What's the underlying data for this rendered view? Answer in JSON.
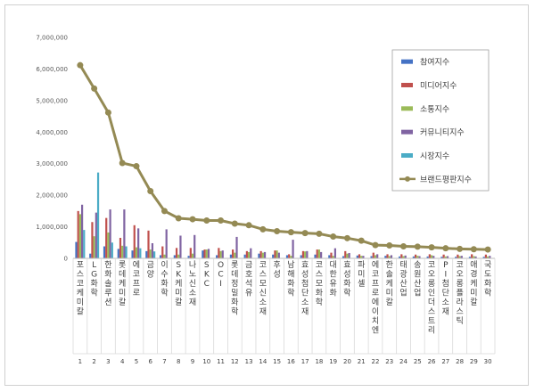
{
  "chart_data": {
    "type": "bar",
    "numbers": [
      "1",
      "2",
      "3",
      "4",
      "5",
      "6",
      "7",
      "8",
      "9",
      "10",
      "11",
      "12",
      "13",
      "14",
      "15",
      "16",
      "17",
      "18",
      "19",
      "20",
      "21",
      "22",
      "23",
      "24",
      "25",
      "26",
      "27",
      "28",
      "29",
      "30"
    ],
    "categories": [
      "포스코케미칼",
      "LG화학",
      "한화솔루션",
      "롯데케미칼",
      "에코프로",
      "금양",
      "이수화학",
      "SK케미칼",
      "나노신소재",
      "SKC",
      "OCI",
      "롯데정밀화학",
      "금호석유",
      "코스모신소재",
      "후성",
      "남해화학",
      "효성첨단소재",
      "코스모화학",
      "대한유화",
      "효성화학",
      "파미셀",
      "에코프로에이치엔",
      "한솔케미칼",
      "태광산업",
      "송원산업",
      "코오롱인더스트리",
      "PI첨단소재",
      "코오롱플라스틱",
      "애경케미칼",
      "국도화학"
    ],
    "ylim": [
      0,
      7000000
    ],
    "yticks": [
      "0",
      "1,000,000",
      "2,000,000",
      "3,000,000",
      "4,000,000",
      "5,000,000",
      "6,000,000",
      "7,000,000"
    ],
    "grid": false,
    "legend_position": "right",
    "series": [
      {
        "name": "참여지수",
        "color": "#4472c4",
        "kind": "bar",
        "values": [
          520000,
          150000,
          380000,
          300000,
          250000,
          230000,
          100000,
          100000,
          80000,
          250000,
          100000,
          120000,
          120000,
          150000,
          120000,
          100000,
          100000,
          120000,
          100000,
          70000,
          90000,
          70000,
          80000,
          60000,
          60000,
          60000,
          50000,
          50000,
          50000,
          50000
        ]
      },
      {
        "name": "미디어지수",
        "color": "#c0504d",
        "kind": "bar",
        "values": [
          1500000,
          1150000,
          1280000,
          650000,
          1050000,
          880000,
          380000,
          330000,
          330000,
          280000,
          330000,
          280000,
          230000,
          230000,
          250000,
          130000,
          230000,
          280000,
          180000,
          230000,
          130000,
          180000,
          130000,
          130000,
          120000,
          130000,
          120000,
          120000,
          130000,
          120000
        ]
      },
      {
        "name": "소통지수",
        "color": "#9bbb59",
        "kind": "bar",
        "values": [
          1400000,
          700000,
          820000,
          400000,
          350000,
          280000,
          120000,
          120000,
          150000,
          280000,
          230000,
          180000,
          200000,
          180000,
          250000,
          80000,
          220000,
          280000,
          80000,
          150000,
          80000,
          100000,
          70000,
          70000,
          80000,
          100000,
          60000,
          70000,
          70000,
          60000
        ]
      },
      {
        "name": "커뮤니티지수",
        "color": "#8064a2",
        "kind": "bar",
        "values": [
          1700000,
          1450000,
          1550000,
          1550000,
          950000,
          480000,
          920000,
          720000,
          740000,
          300000,
          250000,
          680000,
          320000,
          200000,
          180000,
          590000,
          230000,
          200000,
          320000,
          170000,
          80000,
          130000,
          100000,
          90000,
          70000,
          80000,
          70000,
          80000,
          60000,
          80000
        ]
      },
      {
        "name": "시장지수",
        "color": "#4bacc6",
        "kind": "bar",
        "values": [
          900000,
          2720000,
          500000,
          380000,
          320000,
          220000,
          0,
          0,
          0,
          0,
          0,
          0,
          0,
          0,
          0,
          0,
          0,
          0,
          0,
          0,
          0,
          0,
          0,
          0,
          0,
          0,
          0,
          0,
          0,
          0
        ]
      },
      {
        "name": "브랜드평판지수",
        "color": "#948a54",
        "kind": "line",
        "values": [
          6120000,
          5380000,
          4620000,
          3020000,
          2920000,
          2130000,
          1500000,
          1270000,
          1240000,
          1200000,
          1200000,
          1100000,
          1050000,
          920000,
          860000,
          830000,
          800000,
          780000,
          690000,
          640000,
          560000,
          420000,
          410000,
          380000,
          370000,
          350000,
          320000,
          300000,
          290000,
          280000
        ]
      }
    ]
  }
}
